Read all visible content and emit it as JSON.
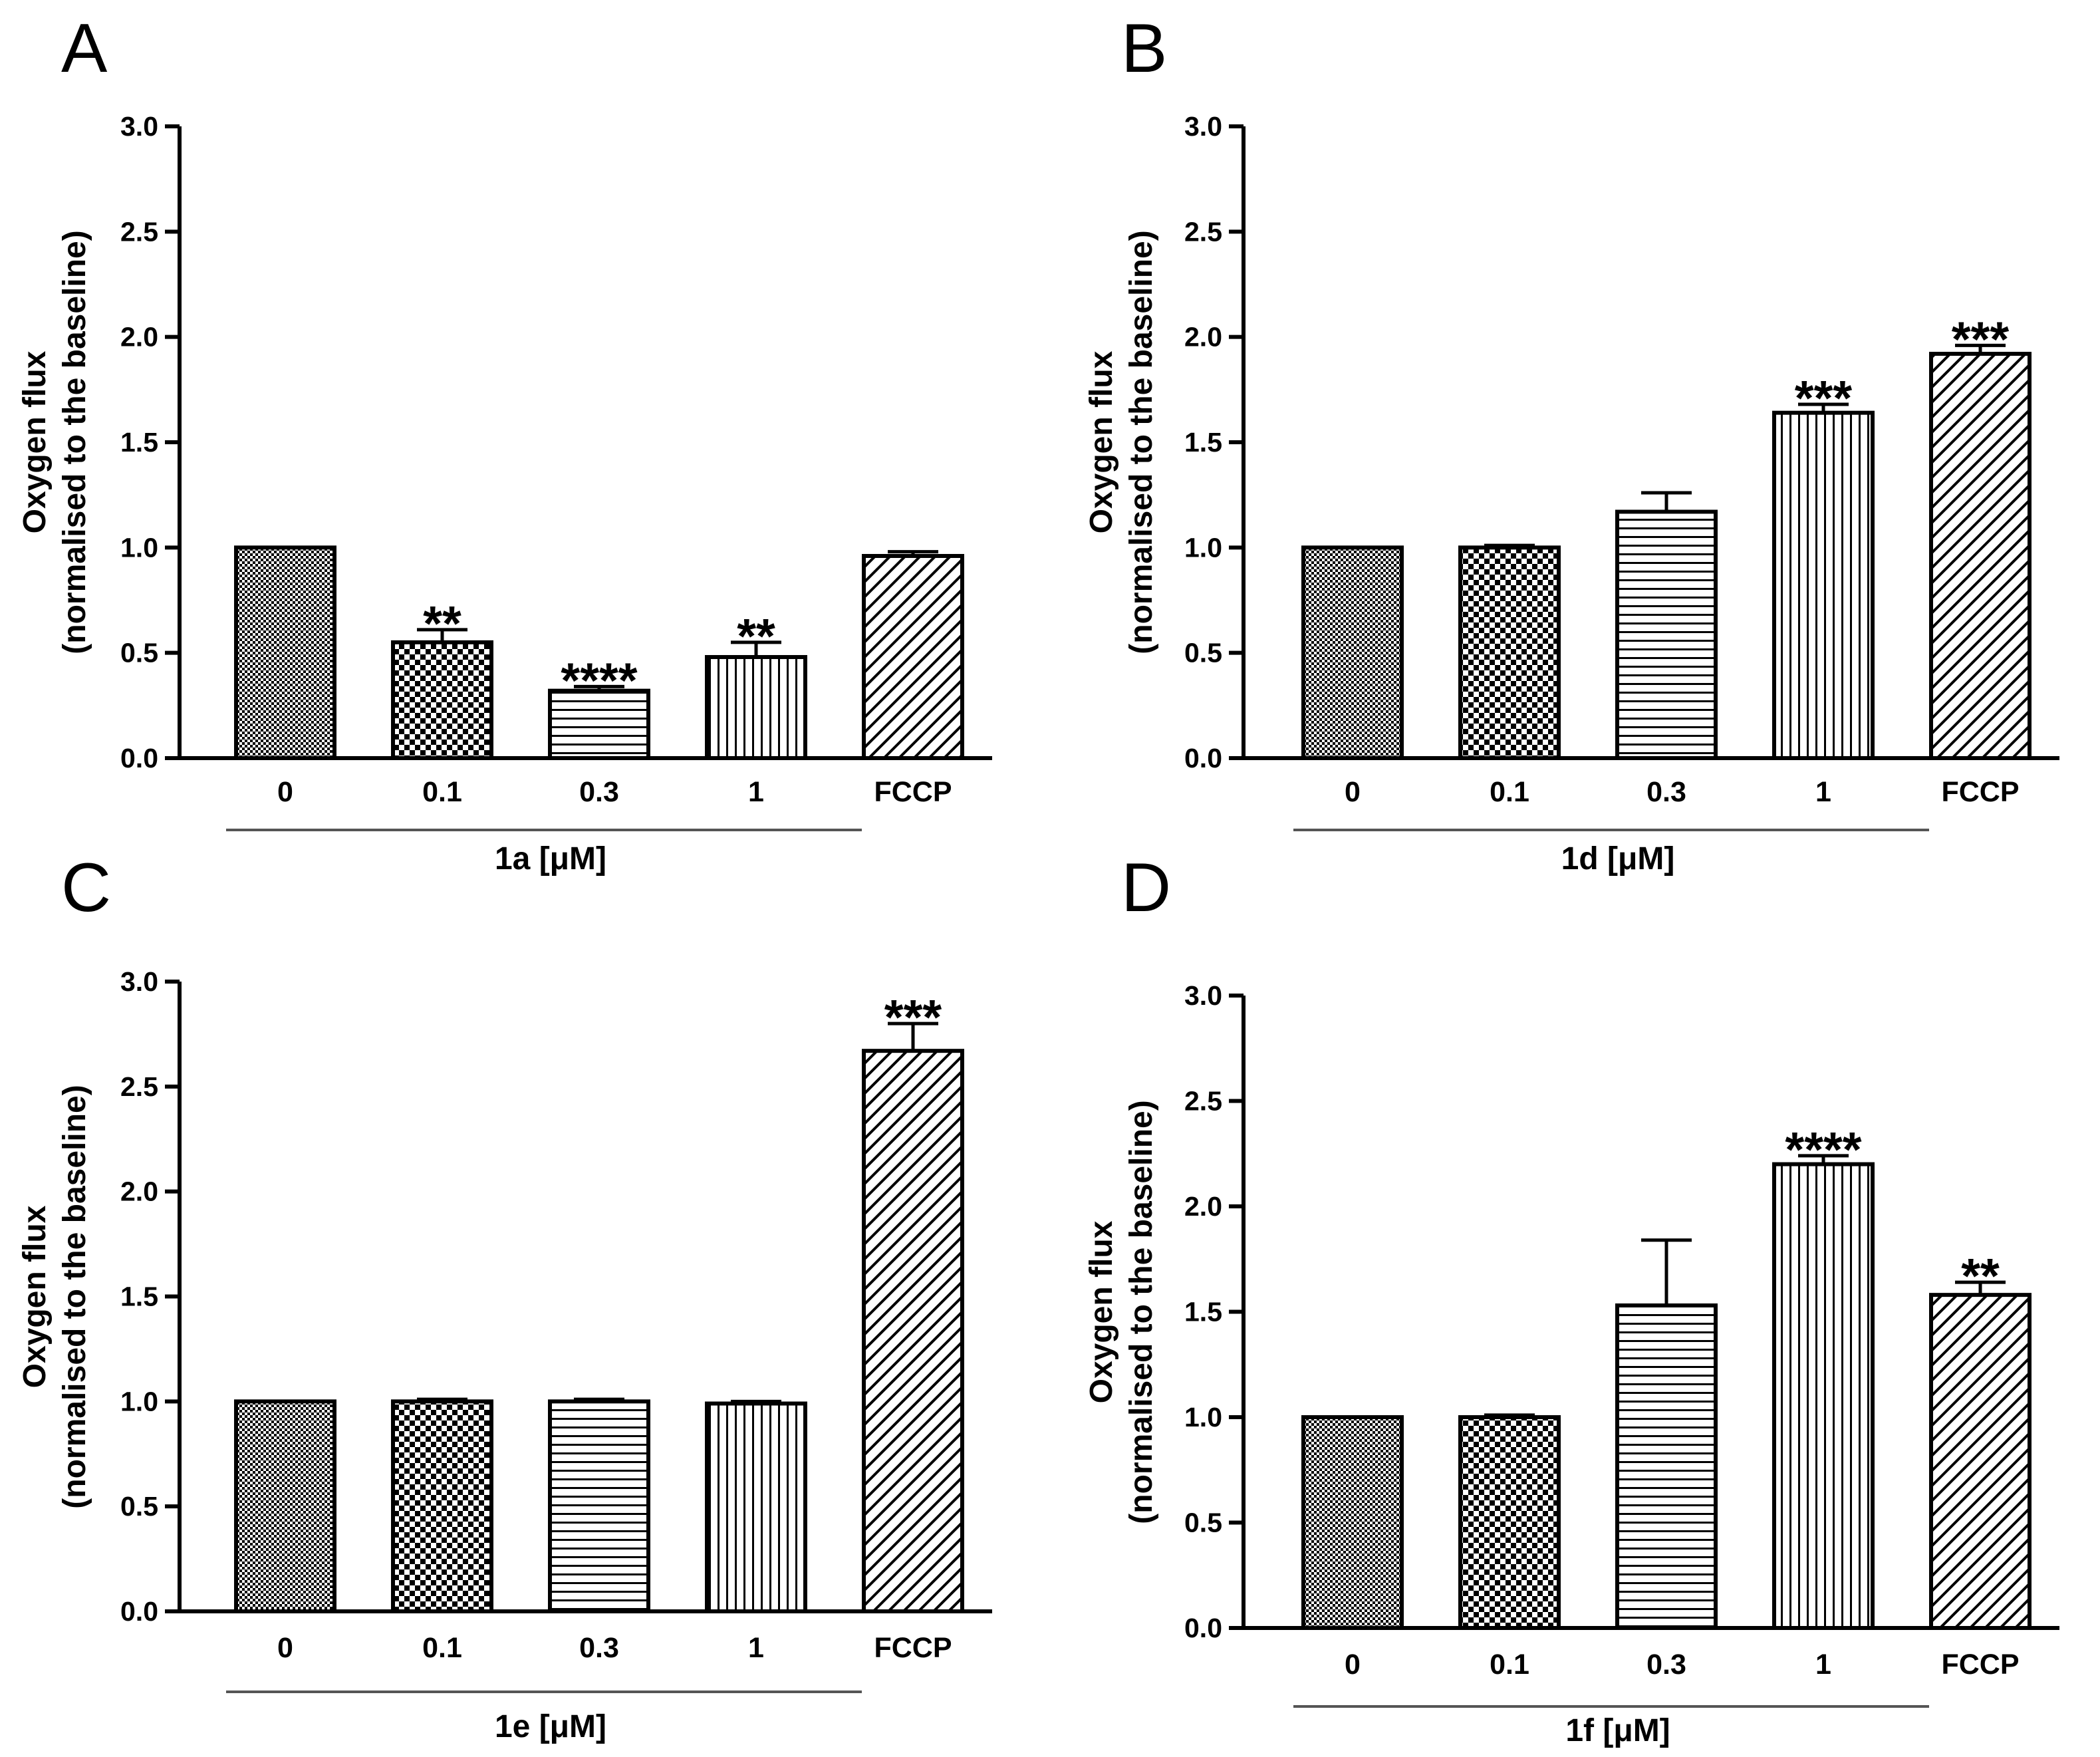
{
  "colors": {
    "ink": "#000000",
    "background": "#ffffff",
    "bar_outline": "#000000",
    "group_line": "#555555"
  },
  "chart_data": [
    {
      "panel": "A",
      "type": "bar",
      "ylabel": [
        "Oxygen flux",
        "(normalised to the baseline)"
      ],
      "group_label": "1a [μM]",
      "group_span": [
        "0",
        "1"
      ],
      "ylim": [
        0,
        3.0
      ],
      "yticks": [
        "0.0",
        "0.5",
        "1.0",
        "1.5",
        "2.0",
        "2.5",
        "3.0"
      ],
      "categories": [
        "0",
        "0.1",
        "0.3",
        "1",
        "FCCP"
      ],
      "patterns": [
        "fine-checker",
        "checker",
        "horizontal",
        "vertical",
        "diagonal"
      ],
      "values": [
        1.0,
        0.55,
        0.32,
        0.48,
        0.96
      ],
      "errors": [
        0.0,
        0.06,
        0.02,
        0.07,
        0.02
      ],
      "significance": [
        "",
        "**",
        "****",
        "**",
        ""
      ]
    },
    {
      "panel": "B",
      "type": "bar",
      "ylabel": [
        "Oxygen flux",
        "(normalised to the baseline)"
      ],
      "group_label": "1d [μM]",
      "group_span": [
        "0",
        "1"
      ],
      "ylim": [
        0,
        3.0
      ],
      "yticks": [
        "0.0",
        "0.5",
        "1.0",
        "1.5",
        "2.0",
        "2.5",
        "3.0"
      ],
      "categories": [
        "0",
        "0.1",
        "0.3",
        "1",
        "FCCP"
      ],
      "patterns": [
        "fine-checker",
        "checker",
        "horizontal",
        "vertical",
        "diagonal"
      ],
      "values": [
        1.0,
        1.0,
        1.17,
        1.64,
        1.92
      ],
      "errors": [
        0.0,
        0.01,
        0.09,
        0.04,
        0.04
      ],
      "significance": [
        "",
        "",
        "",
        "***",
        "***"
      ]
    },
    {
      "panel": "C",
      "type": "bar",
      "ylabel": [
        "Oxygen flux",
        "(normalised to the baseline)"
      ],
      "group_label": "1e [μM]",
      "group_span": [
        "0",
        "1"
      ],
      "ylim": [
        0,
        3.0
      ],
      "yticks": [
        "0.0",
        "0.5",
        "1.0",
        "1.5",
        "2.0",
        "2.5",
        "3.0"
      ],
      "categories": [
        "0",
        "0.1",
        "0.3",
        "1",
        "FCCP"
      ],
      "patterns": [
        "fine-checker",
        "checker",
        "horizontal",
        "vertical",
        "diagonal"
      ],
      "values": [
        1.0,
        1.0,
        1.0,
        0.99,
        2.67
      ],
      "errors": [
        0.0,
        0.01,
        0.01,
        0.01,
        0.13
      ],
      "significance": [
        "",
        "",
        "",
        "",
        "***"
      ]
    },
    {
      "panel": "D",
      "type": "bar",
      "ylabel": [
        "Oxygen flux",
        "(normalised to the baseline)"
      ],
      "group_label": "1f [μM]",
      "group_span": [
        "0",
        "1"
      ],
      "ylim": [
        0,
        3.0
      ],
      "yticks": [
        "0.0",
        "0.5",
        "1.0",
        "1.5",
        "2.0",
        "2.5",
        "3.0"
      ],
      "categories": [
        "0",
        "0.1",
        "0.3",
        "1",
        "FCCP"
      ],
      "patterns": [
        "fine-checker",
        "checker",
        "horizontal",
        "vertical",
        "diagonal"
      ],
      "values": [
        1.0,
        1.0,
        1.53,
        2.2,
        1.58
      ],
      "errors": [
        0.0,
        0.01,
        0.31,
        0.04,
        0.06
      ],
      "significance": [
        "",
        "",
        "",
        "****",
        "**"
      ]
    }
  ]
}
